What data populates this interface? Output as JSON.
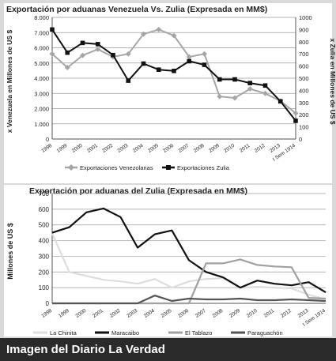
{
  "caption": "Imagen del Diario La Verdad",
  "chart_data": [
    {
      "type": "line",
      "title": "Exportación por aduanas Venezuela Vs. Zulia (Expresada en MM$)",
      "ylabel": "x Venezuela en Millones de US $",
      "y2label": "x Zulia en Millones de US $",
      "categories": [
        "1998",
        "1999",
        "2000",
        "2001",
        "2002",
        "2003",
        "2004",
        "2005",
        "2006",
        "2007",
        "2008",
        "2009",
        "2010",
        "2011",
        "2012",
        "2013",
        "I Sem 1914"
      ],
      "ylim": [
        0,
        8000
      ],
      "yticks": [
        "0",
        "1.000",
        "2.000",
        "3.000",
        "4.000",
        "5.000",
        "6.000",
        "7.000",
        "8.000"
      ],
      "y2lim": [
        0,
        1000
      ],
      "y2ticks": [
        "0",
        "100",
        "200",
        "300",
        "400",
        "500",
        "600",
        "700",
        "800",
        "900",
        "1000"
      ],
      "grid": true,
      "legend_position": "bottom",
      "series": [
        {
          "name": "Exportaciones Venezolanas",
          "axis": "left",
          "color": "#a6a6a6",
          "marker": "diamond",
          "values": [
            5600,
            4700,
            5500,
            5900,
            5400,
            5600,
            6900,
            7200,
            6800,
            5400,
            5600,
            2800,
            2700,
            3300,
            3000,
            2500,
            1700
          ]
        },
        {
          "name": "Exportaciones Zulia",
          "axis": "right",
          "color": "#111111",
          "marker": "square",
          "values": [
            900,
            710,
            790,
            780,
            690,
            480,
            620,
            570,
            560,
            640,
            610,
            490,
            490,
            460,
            440,
            310,
            150
          ]
        }
      ]
    },
    {
      "type": "line",
      "title": "Exportación por aduanas del Zulia (Expresada en MM$)",
      "ylabel": "Millones de US $",
      "categories": [
        "1998",
        "1999",
        "2000",
        "2001",
        "2002",
        "2003",
        "2004",
        "2005",
        "2006",
        "2007",
        "2008",
        "2009",
        "2010",
        "2011",
        "2012",
        "2013",
        "I Sem 1914"
      ],
      "ylim": [
        0,
        700
      ],
      "yticks": [
        "0",
        "100",
        "200",
        "300",
        "400",
        "500",
        "600",
        "700"
      ],
      "grid": true,
      "legend_position": "bottom",
      "series": [
        {
          "name": "La Chinita",
          "color": "#dddddd",
          "values": [
            445,
            200,
            175,
            150,
            140,
            125,
            155,
            100,
            140,
            155,
            160,
            100,
            105,
            100,
            95,
            55,
            25
          ]
        },
        {
          "name": "Maracaibo",
          "color": "#111111",
          "values": [
            450,
            485,
            580,
            605,
            550,
            355,
            440,
            465,
            275,
            200,
            165,
            100,
            145,
            125,
            115,
            135,
            70
          ]
        },
        {
          "name": "El Tablazo",
          "color": "#a0a0a0",
          "values": [
            0,
            0,
            0,
            0,
            0,
            0,
            0,
            0,
            0,
            255,
            255,
            280,
            245,
            235,
            230,
            35,
            30
          ]
        },
        {
          "name": "Paraguachón",
          "color": "#555555",
          "values": [
            0,
            0,
            0,
            0,
            0,
            0,
            50,
            15,
            30,
            25,
            25,
            30,
            20,
            20,
            25,
            20,
            15
          ]
        }
      ]
    }
  ]
}
